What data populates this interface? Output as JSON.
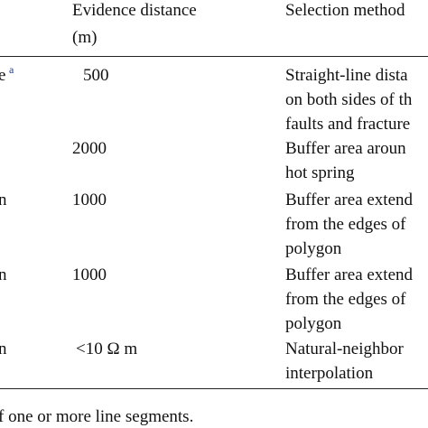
{
  "table": {
    "header": {
      "distance": [
        "Evidence distance",
        "(m)"
      ],
      "method": [
        "Selection method"
      ]
    },
    "rows": [
      {
        "name": "e",
        "note": "a",
        "distance": "500",
        "method": [
          "Straight-line dista",
          "on both sides of th",
          "faults and fracture"
        ]
      },
      {
        "distance": "2000",
        "method": [
          "Buffer area aroun",
          "hot spring"
        ]
      },
      {
        "name": "n",
        "distance": "1000",
        "method": [
          "Buffer area extend",
          "from the edges of",
          "polygon"
        ]
      },
      {
        "name": "n",
        "distance": "1000",
        "method": [
          "Buffer area extend",
          "from the edges of",
          "polygon"
        ]
      },
      {
        "name": "n",
        "distance": "<10 Ω m",
        "method": [
          "Natural-neighbor",
          "interpolation"
        ]
      }
    ],
    "footnote": "f one or more line segments."
  }
}
